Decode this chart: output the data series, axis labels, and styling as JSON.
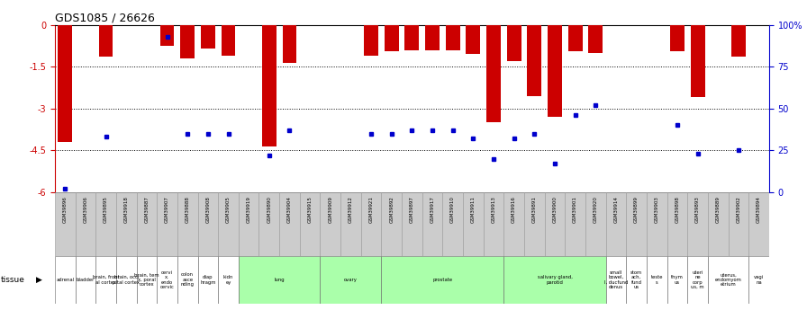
{
  "title": "GDS1085 / 26626",
  "samples": [
    "GSM39896",
    "GSM39906",
    "GSM39895",
    "GSM39918",
    "GSM39887",
    "GSM39907",
    "GSM39888",
    "GSM39908",
    "GSM39905",
    "GSM39919",
    "GSM39890",
    "GSM39904",
    "GSM39915",
    "GSM39909",
    "GSM39912",
    "GSM39921",
    "GSM39892",
    "GSM39897",
    "GSM39917",
    "GSM39910",
    "GSM39911",
    "GSM39913",
    "GSM39916",
    "GSM39891",
    "GSM39900",
    "GSM39901",
    "GSM39920",
    "GSM39914",
    "GSM39899",
    "GSM39903",
    "GSM39898",
    "GSM39893",
    "GSM39889",
    "GSM39902",
    "GSM39894"
  ],
  "log_ratios": [
    -4.2,
    0,
    -1.15,
    0,
    0,
    -0.75,
    -1.2,
    -0.85,
    -1.1,
    0,
    -4.35,
    -1.35,
    0,
    0,
    0,
    -1.1,
    -0.95,
    -0.9,
    -0.9,
    -0.9,
    -1.05,
    -3.5,
    -1.3,
    -2.55,
    -3.3,
    -0.95,
    -1.0,
    0,
    0,
    0,
    -0.95,
    -2.6,
    0,
    -1.15,
    0
  ],
  "percentile_ranks": [
    2,
    0,
    33,
    0,
    0,
    93,
    35,
    35,
    35,
    0,
    22,
    37,
    0,
    0,
    0,
    35,
    35,
    37,
    37,
    37,
    32,
    20,
    32,
    35,
    17,
    46,
    52,
    0,
    0,
    0,
    40,
    23,
    0,
    25,
    0
  ],
  "tissue_groups": [
    {
      "label": "adrenal",
      "start": 0,
      "end": 1,
      "color": "#ffffff"
    },
    {
      "label": "bladder",
      "start": 1,
      "end": 2,
      "color": "#ffffff"
    },
    {
      "label": "brain, front\nal cortex",
      "start": 2,
      "end": 3,
      "color": "#ffffff"
    },
    {
      "label": "brain, occi\npital cortex",
      "start": 3,
      "end": 4,
      "color": "#ffffff"
    },
    {
      "label": "brain, tem\nx, poral\ncortex",
      "start": 4,
      "end": 5,
      "color": "#ffffff"
    },
    {
      "label": "cervi\nx,\nendo\ncervic",
      "start": 5,
      "end": 6,
      "color": "#ffffff"
    },
    {
      "label": "colon\nasce\nnding",
      "start": 6,
      "end": 7,
      "color": "#ffffff"
    },
    {
      "label": "diap\nhragm",
      "start": 7,
      "end": 8,
      "color": "#ffffff"
    },
    {
      "label": "kidn\ney",
      "start": 8,
      "end": 9,
      "color": "#ffffff"
    },
    {
      "label": "lung",
      "start": 9,
      "end": 13,
      "color": "#aaffaa"
    },
    {
      "label": "ovary",
      "start": 13,
      "end": 16,
      "color": "#aaffaa"
    },
    {
      "label": "prostate",
      "start": 16,
      "end": 22,
      "color": "#aaffaa"
    },
    {
      "label": "salivary gland,\nparotid",
      "start": 22,
      "end": 27,
      "color": "#aaffaa"
    },
    {
      "label": "small\nbowel,\nI, ducfund\ndenus",
      "start": 27,
      "end": 28,
      "color": "#ffffff"
    },
    {
      "label": "stom\nach,\nfund\nus",
      "start": 28,
      "end": 29,
      "color": "#ffffff"
    },
    {
      "label": "teste\ns",
      "start": 29,
      "end": 30,
      "color": "#ffffff"
    },
    {
      "label": "thym\nus",
      "start": 30,
      "end": 31,
      "color": "#ffffff"
    },
    {
      "label": "uteri\nne\ncorp\nus, m",
      "start": 31,
      "end": 32,
      "color": "#ffffff"
    },
    {
      "label": "uterus,\nendomyom\netrium",
      "start": 32,
      "end": 34,
      "color": "#ffffff"
    },
    {
      "label": "vagi\nna",
      "start": 34,
      "end": 35,
      "color": "#ffffff"
    }
  ],
  "ylim_left": [
    -6,
    0
  ],
  "ylim_right": [
    0,
    100
  ],
  "bar_color": "#cc0000",
  "marker_color": "#0000cc",
  "bg_color": "#ffffff",
  "tick_color_left": "#cc0000",
  "tick_color_right": "#0000cc",
  "grid_yticks_left": [
    0,
    -1.5,
    -3,
    -4.5,
    -6
  ],
  "grid_yticks_left_labels": [
    "0",
    "-1.5",
    "-3",
    "-4.5",
    "-6"
  ],
  "grid_yticks_right": [
    0,
    25,
    50,
    75,
    100
  ],
  "grid_yticks_right_labels": [
    "0",
    "25",
    "50",
    "75",
    "100%"
  ],
  "sample_bg": "#cccccc",
  "green_bg": "#aaffaa"
}
